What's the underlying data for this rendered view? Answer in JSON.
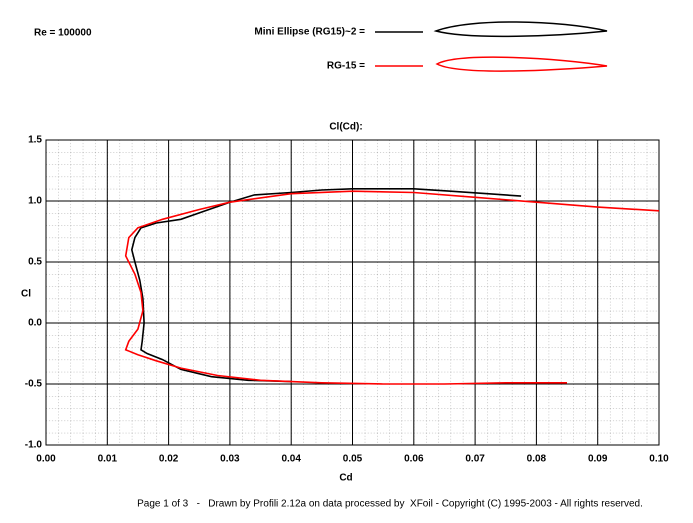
{
  "chart_data": {
    "type": "line",
    "annotation": "Re = 100000",
    "title": "Cl(Cd):",
    "x_label": "Cd",
    "y_label": "Cl",
    "footer": "Page 1 of 3   -   Drawn by Profili 2.12a on data processed by  XFoil - Copyright (C) 1995-2003 - All rights reserved.",
    "xlim": [
      0,
      0.1
    ],
    "ylim": [
      -1,
      1.5
    ],
    "xticks": [
      {
        "value": 0,
        "label": "0.00"
      },
      0.01,
      0.02,
      0.03,
      0.04,
      0.05,
      0.06,
      0.07,
      0.08,
      0.09,
      {
        "value": 0.1,
        "label": "0.10"
      }
    ],
    "yticks": [
      1.5,
      {
        "value": 1,
        "label": "1.0"
      },
      {
        "value": 0.5,
        "label": "0.5"
      },
      {
        "value": 0,
        "label": "0.0"
      },
      -0.5,
      {
        "value": -1,
        "label": "-1.0"
      }
    ],
    "grid": true,
    "series": [
      {
        "name": "Mini Ellipse (RG15)~2 =",
        "color": "#000000",
        "x": [
          0.04,
          0.033,
          0.027,
          0.022,
          0.019,
          0.0165,
          0.0155,
          0.0157,
          0.016,
          0.0158,
          0.0153,
          0.0145,
          0.014,
          0.0145,
          0.0155,
          0.018,
          0.022,
          0.026,
          0.03,
          0.034,
          0.04,
          0.045,
          0.05,
          0.06,
          0.066,
          0.072,
          0.0775
        ],
        "values": [
          -0.48,
          -0.47,
          -0.44,
          -0.38,
          -0.3,
          -0.25,
          -0.22,
          -0.15,
          0,
          0.2,
          0.35,
          0.5,
          0.6,
          0.7,
          0.78,
          0.82,
          0.85,
          0.92,
          0.99,
          1.05,
          1.07,
          1.09,
          1.1,
          1.1,
          1.08,
          1.06,
          1.04
        ]
      },
      {
        "name": "RG-15 =",
        "color": "#ff0000",
        "x": [
          0.085,
          0.075,
          0.065,
          0.055,
          0.045,
          0.035,
          0.028,
          0.022,
          0.018,
          0.015,
          0.013,
          0.0135,
          0.015,
          0.0158,
          0.0155,
          0.0145,
          0.013,
          0.0135,
          0.015,
          0.019,
          0.025,
          0.03,
          0.04,
          0.05,
          0.06,
          0.07,
          0.08,
          0.09,
          0.1
        ],
        "values": [
          -0.49,
          -0.49,
          -0.5,
          -0.5,
          -0.49,
          -0.47,
          -0.43,
          -0.37,
          -0.31,
          -0.26,
          -0.22,
          -0.15,
          -0.05,
          0.1,
          0.25,
          0.4,
          0.55,
          0.7,
          0.78,
          0.85,
          0.93,
          0.99,
          1.06,
          1.08,
          1.07,
          1.03,
          0.99,
          0.95,
          0.92
        ]
      }
    ]
  }
}
